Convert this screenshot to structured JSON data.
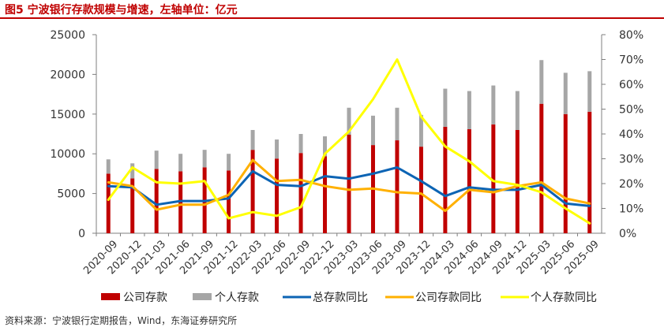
{
  "title": "图5  宁波银行存款规模与增速，左轴单位：亿元",
  "source": "资料来源：宁波银行定期报告，Wind，东海证券研究所",
  "chart_data": {
    "type": "bar+line",
    "categories": [
      "2020-09",
      "2020-12",
      "2021-03",
      "2021-06",
      "2021-09",
      "2021-12",
      "2022-03",
      "2022-06",
      "2022-09",
      "2022-12",
      "2023-03",
      "2023-06",
      "2023-09",
      "2023-12",
      "2024-03",
      "2024-06",
      "2024-09",
      "2024-12",
      "2025-03",
      "2025-06",
      "2025-09"
    ],
    "left_axis": {
      "ylim": [
        0,
        25000
      ],
      "ticks": [
        "0",
        "5000",
        "10000",
        "15000",
        "20000",
        "25000"
      ]
    },
    "right_axis": {
      "ylim": [
        0,
        80
      ],
      "ticks": [
        "0%",
        "10%",
        "20%",
        "30%",
        "40%",
        "50%",
        "60%",
        "70%",
        "80%"
      ]
    },
    "bar_series": [
      {
        "name": "公司存款",
        "color": "#c00000",
        "values": [
          7500,
          6900,
          8100,
          7800,
          8300,
          7900,
          10500,
          9400,
          10100,
          9700,
          12400,
          11100,
          11700,
          10900,
          13400,
          13100,
          13700,
          13000,
          16300,
          15000,
          15300
        ]
      },
      {
        "name": "个人存款",
        "color": "#a6a6a6",
        "values": [
          1800,
          1900,
          2300,
          2200,
          2200,
          2100,
          2500,
          2400,
          2400,
          2500,
          3400,
          3700,
          4100,
          4000,
          4800,
          4800,
          4900,
          4900,
          5500,
          5200,
          5100
        ]
      }
    ],
    "line_series": [
      {
        "name": "总存款同比",
        "color": "#0c64b4",
        "values": [
          19,
          18.5,
          11.5,
          13,
          13,
          14,
          25,
          19.5,
          19,
          23,
          22,
          24,
          26.5,
          21,
          15,
          18.5,
          17.5,
          17.5,
          19.5,
          12,
          11
        ]
      },
      {
        "name": "公司存款同比",
        "color": "#ffb000",
        "values": [
          20.5,
          19,
          9.5,
          11.5,
          11.5,
          15.5,
          29.5,
          21,
          21.5,
          19,
          17.5,
          18,
          16.5,
          16,
          9,
          17.5,
          16.5,
          19,
          20.5,
          14,
          12
        ]
      },
      {
        "name": "个人存款同比",
        "color": "#ffff00",
        "values": [
          13.5,
          26.5,
          20.5,
          20,
          21,
          6,
          8.5,
          7,
          10.5,
          32,
          41,
          54,
          70,
          47,
          35,
          29,
          21,
          19.5,
          16.5,
          10,
          4
        ]
      }
    ],
    "legend": {
      "position": "bottom"
    }
  }
}
